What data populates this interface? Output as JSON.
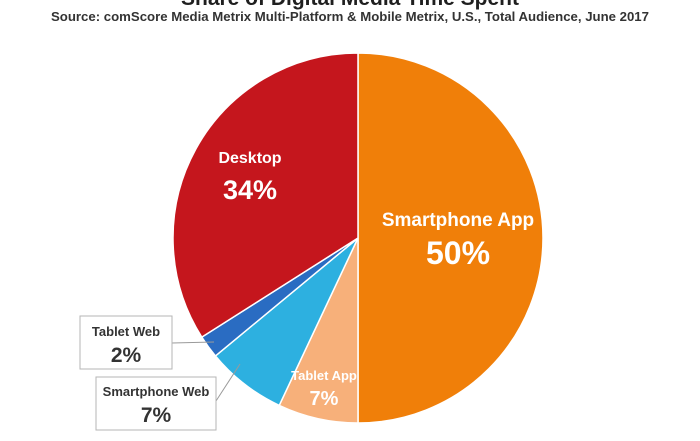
{
  "chart_data": {
    "type": "pie",
    "title": "Share of Digital Media Time Spent",
    "subtitle": "Source: comScore Media Metrix Multi-Platform & Mobile Metrix, U.S., Total Audience, June 2017",
    "slices": [
      {
        "label": "Smartphone App",
        "value": 50,
        "value_label": "50%",
        "color": "#f07f09",
        "label_style": "inside-large"
      },
      {
        "label": "Tablet App",
        "value": 7,
        "value_label": "7%",
        "color": "#f7b07a",
        "label_style": "inside-small"
      },
      {
        "label": "Smartphone Web",
        "value": 7,
        "value_label": "7%",
        "color": "#2db0e0",
        "label_style": "callout"
      },
      {
        "label": "Tablet Web",
        "value": 2,
        "value_label": "2%",
        "color": "#2a6cc2",
        "label_style": "callout"
      },
      {
        "label": "Desktop",
        "value": 34,
        "value_label": "34%",
        "color": "#c5161d",
        "label_style": "inside-large"
      }
    ],
    "start": "12 o'clock",
    "direction": "clockwise",
    "legend": "none"
  }
}
